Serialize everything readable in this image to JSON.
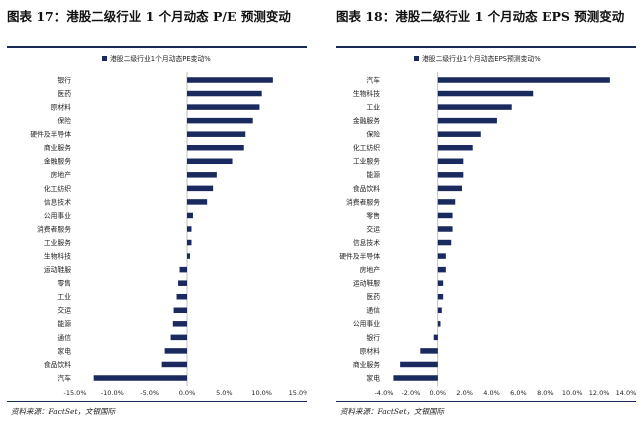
{
  "chart_data": [
    {
      "type": "bar",
      "orientation": "horizontal",
      "title": "图表 17：港股二级行业 1 个月动态 P/E 预测变动",
      "legend": "港股二级行业1个月动态PE变动%",
      "legend_position": "top",
      "source": "资料来源：FactSet，文银国际",
      "categories": [
        "银行",
        "医药",
        "原材料",
        "保险",
        "硬件及半导体",
        "商业服务",
        "金融服务",
        "房地产",
        "化工纺织",
        "信息技术",
        "公用事业",
        "消费者服务",
        "工业服务",
        "生物科技",
        "运动鞋服",
        "零售",
        "工业",
        "交运",
        "能源",
        "通信",
        "家电",
        "食品饮料",
        "汽车"
      ],
      "values": [
        11.5,
        10.0,
        9.7,
        8.8,
        7.8,
        7.6,
        6.1,
        4.0,
        3.5,
        2.7,
        0.8,
        0.6,
        0.6,
        0.4,
        -1.0,
        -1.2,
        -1.4,
        -1.8,
        -1.9,
        -2.2,
        -3.0,
        -3.4,
        -12.5
      ],
      "xlim": [
        -15,
        15
      ],
      "xticks": [
        -15,
        -10,
        -5,
        0,
        5,
        10,
        15
      ],
      "tick_suffix": ".0%",
      "bar_color": "#1b2a5e"
    },
    {
      "type": "bar",
      "orientation": "horizontal",
      "title": "图表 18：港股二级行业 1 个月动态 EPS 预测变动",
      "legend": "港股二级行业1个月动态EPS预测变动%",
      "legend_position": "top",
      "source": "资料来源：FactSet，文银国际",
      "categories": [
        "汽车",
        "生物科技",
        "工业",
        "金融服务",
        "保险",
        "化工纺织",
        "工业服务",
        "能源",
        "食品饮料",
        "消费者服务",
        "零售",
        "交运",
        "信息技术",
        "硬件及半导体",
        "房地产",
        "运动鞋服",
        "医药",
        "通信",
        "公用事业",
        "银行",
        "原材料",
        "商业服务",
        "家电"
      ],
      "values": [
        12.8,
        7.1,
        5.5,
        4.4,
        3.2,
        2.6,
        1.9,
        1.9,
        1.8,
        1.3,
        1.1,
        1.1,
        1.0,
        0.6,
        0.6,
        0.4,
        0.4,
        0.3,
        0.2,
        -0.3,
        -1.3,
        -2.8,
        -3.3
      ],
      "xlim": [
        -4,
        14
      ],
      "xticks": [
        -4,
        -2,
        0,
        2,
        4,
        6,
        8,
        10,
        12,
        14
      ],
      "tick_suffix": ".0%",
      "bar_color": "#1b2a5e"
    }
  ]
}
